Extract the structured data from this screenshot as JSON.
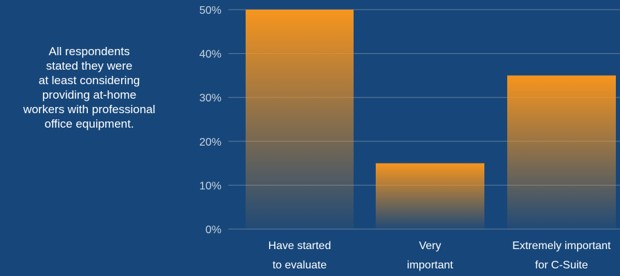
{
  "side_note": {
    "lines": [
      "All respondents",
      "stated they were",
      "at least considering",
      "providing at-home",
      "workers with professional",
      "office equipment."
    ]
  },
  "colors": {
    "background": "#17477a",
    "bar_top": "#f7951e",
    "gridline": "#7a8ea6",
    "tick_text": "#c9d3e0",
    "label_text": "#ffffff"
  },
  "chart_data": {
    "type": "bar",
    "categories": [
      [
        "Have started",
        "to evaluate"
      ],
      [
        "Very",
        "important"
      ],
      [
        "Extremely important",
        "for C-Suite"
      ]
    ],
    "values": [
      50,
      15,
      35
    ],
    "value_unit": "%",
    "ylim": [
      0,
      50
    ],
    "yticks": [
      0,
      10,
      20,
      30,
      40,
      50
    ],
    "ytick_labels": [
      "0%",
      "10%",
      "20%",
      "30%",
      "40%",
      "50%"
    ],
    "grid": true,
    "legend": "none"
  }
}
